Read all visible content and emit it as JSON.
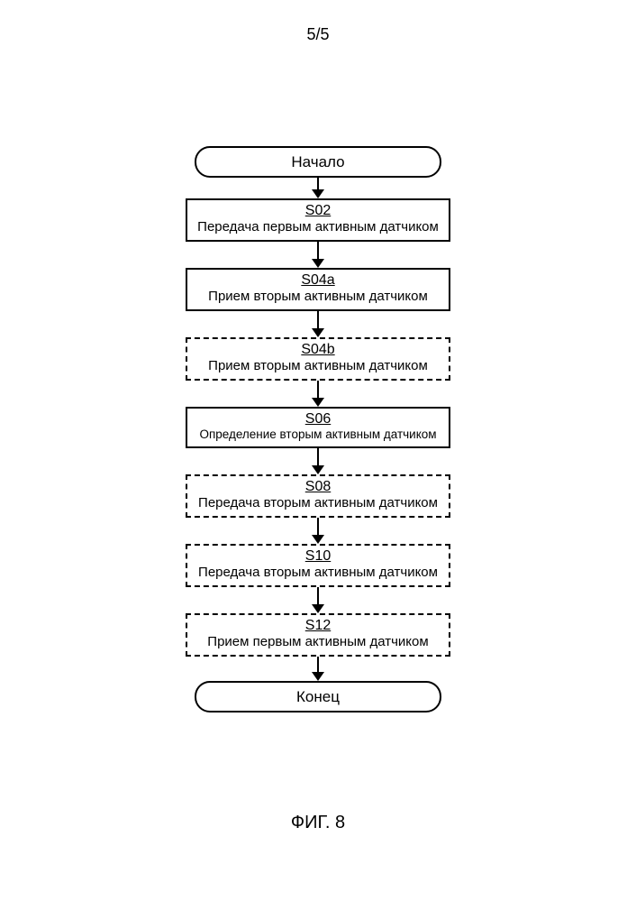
{
  "page_number": "5/5",
  "figure_label": "ФИГ. 8",
  "flowchart": {
    "type": "flowchart",
    "background_color": "#ffffff",
    "stroke_color": "#000000",
    "stroke_width": 2.5,
    "font_family": "Arial",
    "terminal_width": 274,
    "terminal_height": 35,
    "terminal_border_radius": 17,
    "process_width": 294,
    "process_height": 48,
    "arrow_head_width": 14,
    "arrow_head_height": 10,
    "code_fontsize": 16,
    "text_fontsize": 15,
    "small_text_fontsize": 13.5,
    "terminal_fontsize": 17,
    "nodes": [
      {
        "id": "start",
        "kind": "terminal",
        "label": "Начало"
      },
      {
        "id": "s02",
        "kind": "process",
        "border": "solid",
        "code": "S02",
        "text": "Передача первым активным датчиком",
        "small": false
      },
      {
        "id": "s04a",
        "kind": "process",
        "border": "solid",
        "code": "S04a",
        "text": "Прием вторым активным датчиком",
        "small": false
      },
      {
        "id": "s04b",
        "kind": "process",
        "border": "dashed",
        "code": "S04b",
        "text": "Прием вторым активным датчиком",
        "small": false
      },
      {
        "id": "s06",
        "kind": "process",
        "border": "solid",
        "code": "S06",
        "text": "Определение вторым активным датчиком",
        "small": true
      },
      {
        "id": "s08",
        "kind": "process",
        "border": "dashed",
        "code": "S08",
        "text": "Передача вторым активным датчиком",
        "small": false
      },
      {
        "id": "s10",
        "kind": "process",
        "border": "dashed",
        "code": "S10",
        "text": "Передача вторым активным датчиком",
        "small": false
      },
      {
        "id": "s12",
        "kind": "process",
        "border": "dashed",
        "code": "S12",
        "text": "Прием первым активным датчиком",
        "small": false
      },
      {
        "id": "end",
        "kind": "terminal",
        "label": "Конец"
      }
    ],
    "arrows": [
      {
        "after": "start",
        "length": 14
      },
      {
        "after": "s02",
        "length": 20
      },
      {
        "after": "s04a",
        "length": 20
      },
      {
        "after": "s04b",
        "length": 20
      },
      {
        "after": "s06",
        "length": 20
      },
      {
        "after": "s08",
        "length": 20
      },
      {
        "after": "s10",
        "length": 20
      },
      {
        "after": "s12",
        "length": 18
      }
    ]
  }
}
